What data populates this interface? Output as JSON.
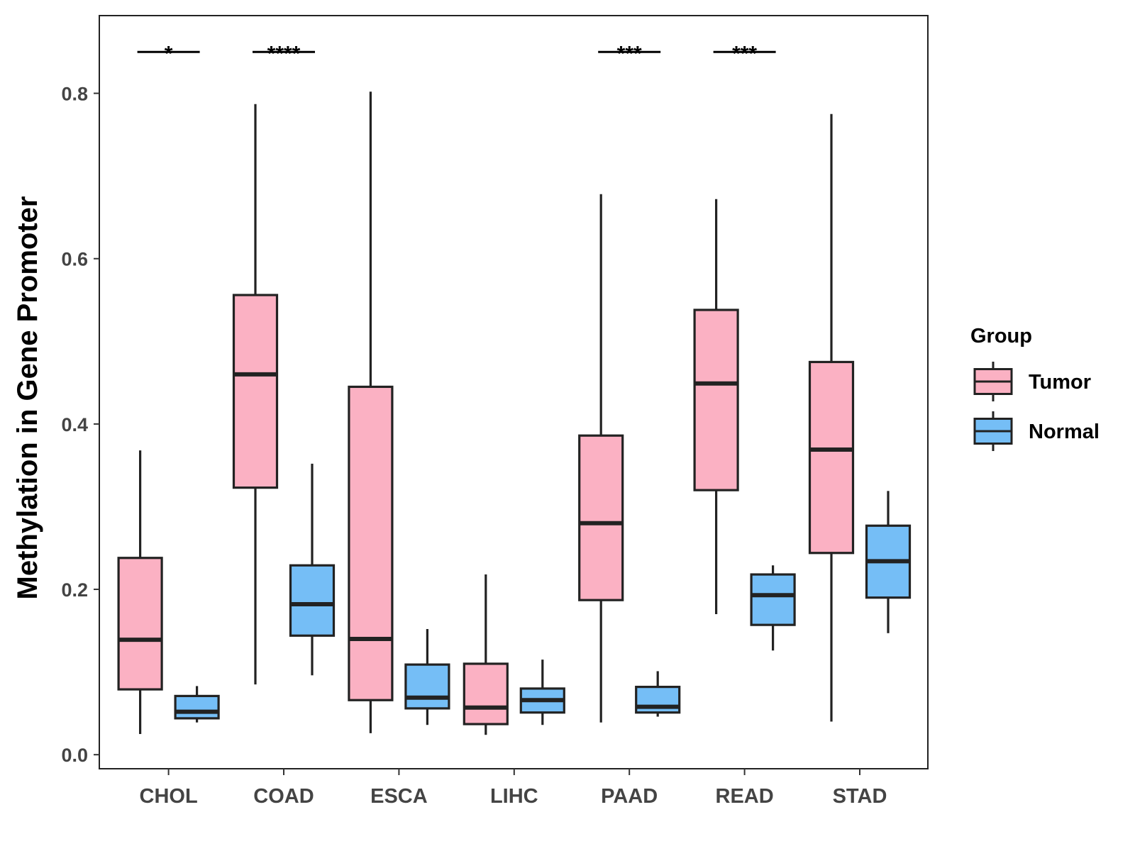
{
  "chart_data": {
    "type": "boxplot",
    "ylabel": "Methylation in Gene Promoter",
    "xlabel": "",
    "ylim": [
      -0.017,
      0.894
    ],
    "yticks": [
      0.0,
      0.2,
      0.4,
      0.6,
      0.8
    ],
    "ytick_labels": [
      "0.0",
      "0.2",
      "0.4",
      "0.6",
      "0.8"
    ],
    "grid": false,
    "legend": {
      "title": "Group",
      "position": "right",
      "entries": [
        {
          "name": "Tumor",
          "color": "#FBB1C3"
        },
        {
          "name": "Normal",
          "color": "#75BEF6"
        }
      ]
    },
    "categories": [
      "CHOL",
      "COAD",
      "ESCA",
      "LIHC",
      "PAAD",
      "READ",
      "STAD"
    ],
    "series": [
      {
        "name": "Tumor",
        "color": "#FBB1C3",
        "boxes": [
          {
            "min": 0.025,
            "q1": 0.079,
            "median": 0.139,
            "q3": 0.238,
            "max": 0.368
          },
          {
            "min": 0.085,
            "q1": 0.323,
            "median": 0.46,
            "q3": 0.556,
            "max": 0.787
          },
          {
            "min": 0.026,
            "q1": 0.066,
            "median": 0.14,
            "q3": 0.445,
            "max": 0.802
          },
          {
            "min": 0.024,
            "q1": 0.037,
            "median": 0.057,
            "q3": 0.11,
            "max": 0.218
          },
          {
            "min": 0.039,
            "q1": 0.187,
            "median": 0.28,
            "q3": 0.386,
            "max": 0.678
          },
          {
            "min": 0.17,
            "q1": 0.32,
            "median": 0.449,
            "q3": 0.538,
            "max": 0.672
          },
          {
            "min": 0.04,
            "q1": 0.244,
            "median": 0.369,
            "q3": 0.475,
            "max": 0.775
          }
        ]
      },
      {
        "name": "Normal",
        "color": "#75BEF6",
        "boxes": [
          {
            "min": 0.039,
            "q1": 0.044,
            "median": 0.052,
            "q3": 0.071,
            "max": 0.083
          },
          {
            "min": 0.096,
            "q1": 0.144,
            "median": 0.182,
            "q3": 0.229,
            "max": 0.352
          },
          {
            "min": 0.036,
            "q1": 0.056,
            "median": 0.069,
            "q3": 0.109,
            "max": 0.152
          },
          {
            "min": 0.036,
            "q1": 0.051,
            "median": 0.066,
            "q3": 0.08,
            "max": 0.115
          },
          {
            "min": 0.046,
            "q1": 0.051,
            "median": 0.058,
            "q3": 0.082,
            "max": 0.101
          },
          {
            "min": 0.126,
            "q1": 0.157,
            "median": 0.193,
            "q3": 0.218,
            "max": 0.229
          },
          {
            "min": 0.147,
            "q1": 0.19,
            "median": 0.234,
            "q3": 0.277,
            "max": 0.319
          }
        ]
      }
    ],
    "annotations": [
      {
        "category": "CHOL",
        "label": "*"
      },
      {
        "category": "COAD",
        "label": "****"
      },
      {
        "category": "PAAD",
        "label": "***"
      },
      {
        "category": "READ",
        "label": "***"
      }
    ],
    "annotation_y": 0.85
  }
}
